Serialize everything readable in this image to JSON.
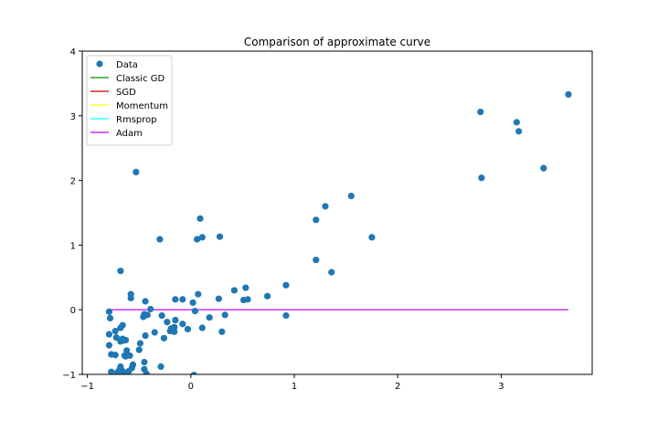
{
  "chart_data": {
    "type": "scatter",
    "title": "Comparison of approximate curve",
    "xlabel": "",
    "ylabel": "",
    "xlim": [
      -1.05,
      3.88
    ],
    "ylim": [
      -1,
      4
    ],
    "x_ticks": [
      "−1",
      "0",
      "1",
      "2",
      "3"
    ],
    "x_tick_values": [
      -1,
      0,
      1,
      2,
      3
    ],
    "y_ticks": [
      "−1",
      "0",
      "1",
      "2",
      "3",
      "4"
    ],
    "y_tick_values": [
      -1,
      0,
      1,
      2,
      3,
      4
    ],
    "grid": false,
    "legend_position": "top-left",
    "legend": [
      {
        "label": "Data",
        "kind": "marker",
        "color": "#1f77b4"
      },
      {
        "label": "Classic GD",
        "kind": "line",
        "color": "#2ca02c"
      },
      {
        "label": "SGD",
        "kind": "line",
        "color": "#d62728"
      },
      {
        "label": "Momentum",
        "kind": "line",
        "color": "#ffff33"
      },
      {
        "label": "Rmsprop",
        "kind": "line",
        "color": "#33ffff"
      },
      {
        "label": "Adam",
        "kind": "line",
        "color": "#cc33ff"
      }
    ],
    "series": [
      {
        "name": "Data",
        "kind": "scatter",
        "color": "#1f77b4",
        "points": [
          [
            3.65,
            3.33
          ],
          [
            2.8,
            3.06
          ],
          [
            3.15,
            2.9
          ],
          [
            3.17,
            2.76
          ],
          [
            2.81,
            2.04
          ],
          [
            3.41,
            2.19
          ],
          [
            1.55,
            1.76
          ],
          [
            1.3,
            1.6
          ],
          [
            1.21,
            1.39
          ],
          [
            1.75,
            1.12
          ],
          [
            1.21,
            0.77
          ],
          [
            1.36,
            0.58
          ],
          [
            -0.53,
            2.13
          ],
          [
            0.09,
            1.41
          ],
          [
            0.28,
            1.13
          ],
          [
            0.11,
            1.12
          ],
          [
            0.06,
            1.09
          ],
          [
            -0.3,
            1.09
          ],
          [
            -0.68,
            0.6
          ],
          [
            0.92,
            0.38
          ],
          [
            0.74,
            0.21
          ],
          [
            0.53,
            0.34
          ],
          [
            0.42,
            0.3
          ],
          [
            0.55,
            0.16
          ],
          [
            0.51,
            0.15
          ],
          [
            0.27,
            0.17
          ],
          [
            0.07,
            0.24
          ],
          [
            0.02,
            0.11
          ],
          [
            -0.08,
            0.16
          ],
          [
            -0.15,
            0.16
          ],
          [
            0.92,
            -0.09
          ],
          [
            0.33,
            -0.08
          ],
          [
            0.18,
            -0.12
          ],
          [
            0.04,
            -0.02
          ],
          [
            -0.58,
            0.24
          ],
          [
            -0.58,
            0.18
          ],
          [
            -0.44,
            0.13
          ],
          [
            -0.39,
            0.01
          ],
          [
            -0.42,
            -0.08
          ],
          [
            -0.45,
            -0.07
          ],
          [
            -0.46,
            -0.11
          ],
          [
            -0.28,
            -0.09
          ],
          [
            -0.15,
            -0.16
          ],
          [
            -0.23,
            -0.19
          ],
          [
            -0.08,
            -0.22
          ],
          [
            -0.03,
            -0.3
          ],
          [
            0.11,
            -0.28
          ],
          [
            0.3,
            -0.34
          ],
          [
            -0.16,
            -0.27
          ],
          [
            -0.18,
            -0.3
          ],
          [
            -0.2,
            -0.33
          ],
          [
            -0.16,
            -0.34
          ],
          [
            -0.19,
            -0.29
          ],
          [
            -0.35,
            -0.35
          ],
          [
            -0.26,
            -0.44
          ],
          [
            -0.44,
            -0.4
          ],
          [
            -0.49,
            -0.52
          ],
          [
            -0.5,
            -0.62
          ],
          [
            -0.79,
            -0.03
          ],
          [
            -0.78,
            -0.13
          ],
          [
            -0.79,
            -0.38
          ],
          [
            -0.79,
            -0.55
          ],
          [
            -0.73,
            -0.33
          ],
          [
            -0.66,
            -0.24
          ],
          [
            -0.68,
            -0.28
          ],
          [
            -0.72,
            -0.43
          ],
          [
            -0.66,
            -0.45
          ],
          [
            -0.68,
            -0.49
          ],
          [
            -0.63,
            -0.47
          ],
          [
            -0.66,
            -0.48
          ],
          [
            -0.77,
            -0.69
          ],
          [
            -0.73,
            -0.7
          ],
          [
            -0.62,
            -0.63
          ],
          [
            -0.64,
            -0.71
          ],
          [
            -0.59,
            -0.71
          ],
          [
            -0.63,
            -0.72
          ],
          [
            -0.45,
            -0.81
          ],
          [
            -0.56,
            -0.85
          ],
          [
            -0.57,
            -0.9
          ],
          [
            -0.45,
            -0.92
          ],
          [
            -0.29,
            -0.88
          ],
          [
            -0.77,
            -0.96
          ],
          [
            -0.68,
            -0.88
          ],
          [
            -0.69,
            -0.93
          ],
          [
            -0.66,
            -0.95
          ],
          [
            -0.71,
            -0.97
          ],
          [
            -0.63,
            -0.99
          ],
          [
            -0.6,
            -0.95
          ],
          [
            -0.43,
            -0.99
          ],
          [
            0.03,
            -1.01
          ]
        ]
      },
      {
        "name": "Classic GD",
        "kind": "line",
        "color": "#2ca02c",
        "x": [
          -0.81,
          3.65
        ],
        "y": [
          0.0,
          0.0
        ]
      },
      {
        "name": "SGD",
        "kind": "line",
        "color": "#d62728",
        "x": [
          -0.81,
          3.65
        ],
        "y": [
          0.0,
          0.0
        ]
      },
      {
        "name": "Momentum",
        "kind": "line",
        "color": "#ffff33",
        "x": [
          -0.81,
          3.65
        ],
        "y": [
          0.0,
          0.0
        ]
      },
      {
        "name": "Rmsprop",
        "kind": "line",
        "color": "#33ffff",
        "x": [
          -0.81,
          3.65
        ],
        "y": [
          0.0,
          0.0
        ]
      },
      {
        "name": "Adam",
        "kind": "line",
        "color": "#cc33ff",
        "x": [
          -0.81,
          3.65
        ],
        "y": [
          0.0,
          0.0
        ]
      }
    ]
  }
}
